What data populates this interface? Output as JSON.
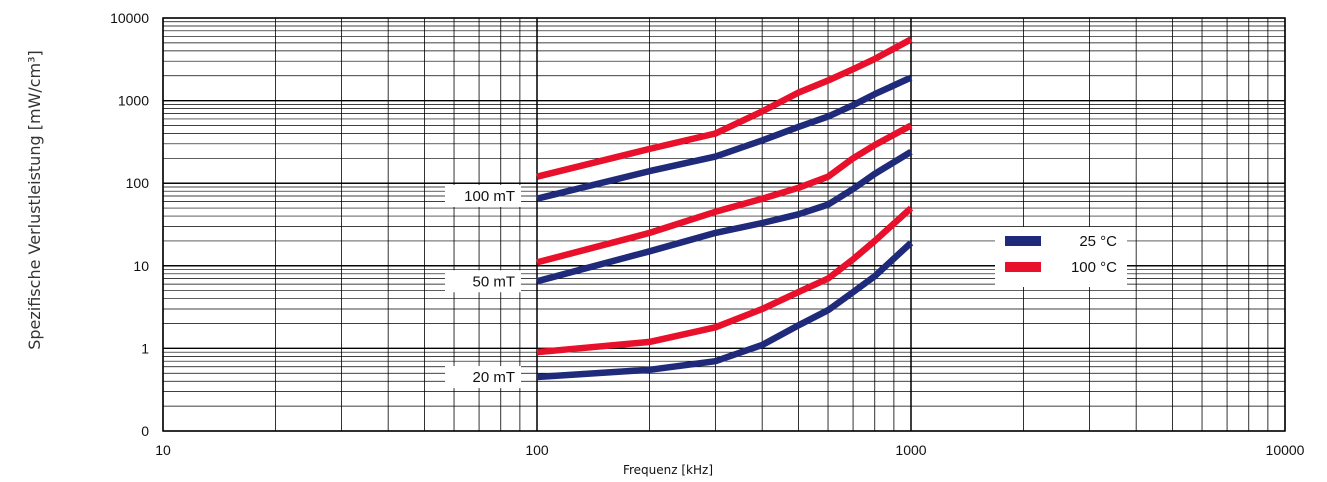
{
  "chart_data": {
    "type": "line",
    "xlabel": "Frequenz [kHz]",
    "ylabel": "Spezifische Verlustleistung [mW/cm³]",
    "x_scale": "log",
    "y_scale": "log",
    "xlim": [
      10,
      10000
    ],
    "ylim": [
      0.1,
      10000
    ],
    "grid": true,
    "x_ticks": [
      "10",
      "100",
      "1000",
      "10000"
    ],
    "y_ticks": [
      {
        "value": 0.1,
        "label": "0"
      },
      {
        "value": 1,
        "label": "1"
      },
      {
        "value": 10,
        "label": "10"
      },
      {
        "value": 100,
        "label": "100"
      },
      {
        "value": 1000,
        "label": "1000"
      },
      {
        "value": 10000,
        "label": "10000"
      }
    ],
    "legend": {
      "placement": "right",
      "entries": [
        {
          "label": "25 °C",
          "color": "#1f2a7a"
        },
        {
          "label": "100 °C",
          "color": "#e8102a"
        }
      ]
    },
    "annotations": [
      {
        "text": "100 mT",
        "x": 100,
        "y": 70
      },
      {
        "text": "50 mT",
        "x": 100,
        "y": 6.5
      },
      {
        "text": "20 mT",
        "x": 100,
        "y": 0.45
      }
    ],
    "series": [
      {
        "group": "100 mT",
        "temp": "25 °C",
        "color": "#1f2a7a",
        "points": [
          [
            100,
            65
          ],
          [
            200,
            140
          ],
          [
            300,
            210
          ],
          [
            400,
            330
          ],
          [
            500,
            480
          ],
          [
            600,
            640
          ],
          [
            700,
            880
          ],
          [
            800,
            1200
          ],
          [
            1000,
            1900
          ]
        ]
      },
      {
        "group": "100 mT",
        "temp": "100 °C",
        "color": "#e8102a",
        "points": [
          [
            100,
            120
          ],
          [
            200,
            260
          ],
          [
            300,
            400
          ],
          [
            400,
            740
          ],
          [
            500,
            1250
          ],
          [
            600,
            1750
          ],
          [
            700,
            2400
          ],
          [
            800,
            3200
          ],
          [
            1000,
            5500
          ]
        ]
      },
      {
        "group": "50 mT",
        "temp": "25 °C",
        "color": "#1f2a7a",
        "points": [
          [
            100,
            6.5
          ],
          [
            200,
            15
          ],
          [
            300,
            25
          ],
          [
            400,
            33
          ],
          [
            500,
            42
          ],
          [
            600,
            55
          ],
          [
            700,
            85
          ],
          [
            800,
            130
          ],
          [
            1000,
            240
          ]
        ]
      },
      {
        "group": "50 mT",
        "temp": "100 °C",
        "color": "#e8102a",
        "points": [
          [
            100,
            11
          ],
          [
            200,
            25
          ],
          [
            300,
            45
          ],
          [
            400,
            65
          ],
          [
            500,
            88
          ],
          [
            600,
            120
          ],
          [
            700,
            200
          ],
          [
            800,
            290
          ],
          [
            1000,
            500
          ]
        ]
      },
      {
        "group": "20 mT",
        "temp": "25 °C",
        "color": "#1f2a7a",
        "points": [
          [
            100,
            0.45
          ],
          [
            200,
            0.55
          ],
          [
            300,
            0.7
          ],
          [
            400,
            1.1
          ],
          [
            500,
            1.9
          ],
          [
            600,
            2.9
          ],
          [
            700,
            4.8
          ],
          [
            800,
            7.5
          ],
          [
            1000,
            19
          ]
        ]
      },
      {
        "group": "20 mT",
        "temp": "100 °C",
        "color": "#e8102a",
        "points": [
          [
            100,
            0.9
          ],
          [
            200,
            1.2
          ],
          [
            300,
            1.8
          ],
          [
            400,
            3.0
          ],
          [
            500,
            4.8
          ],
          [
            600,
            7.0
          ],
          [
            700,
            12
          ],
          [
            800,
            20
          ],
          [
            1000,
            50
          ]
        ]
      }
    ]
  }
}
